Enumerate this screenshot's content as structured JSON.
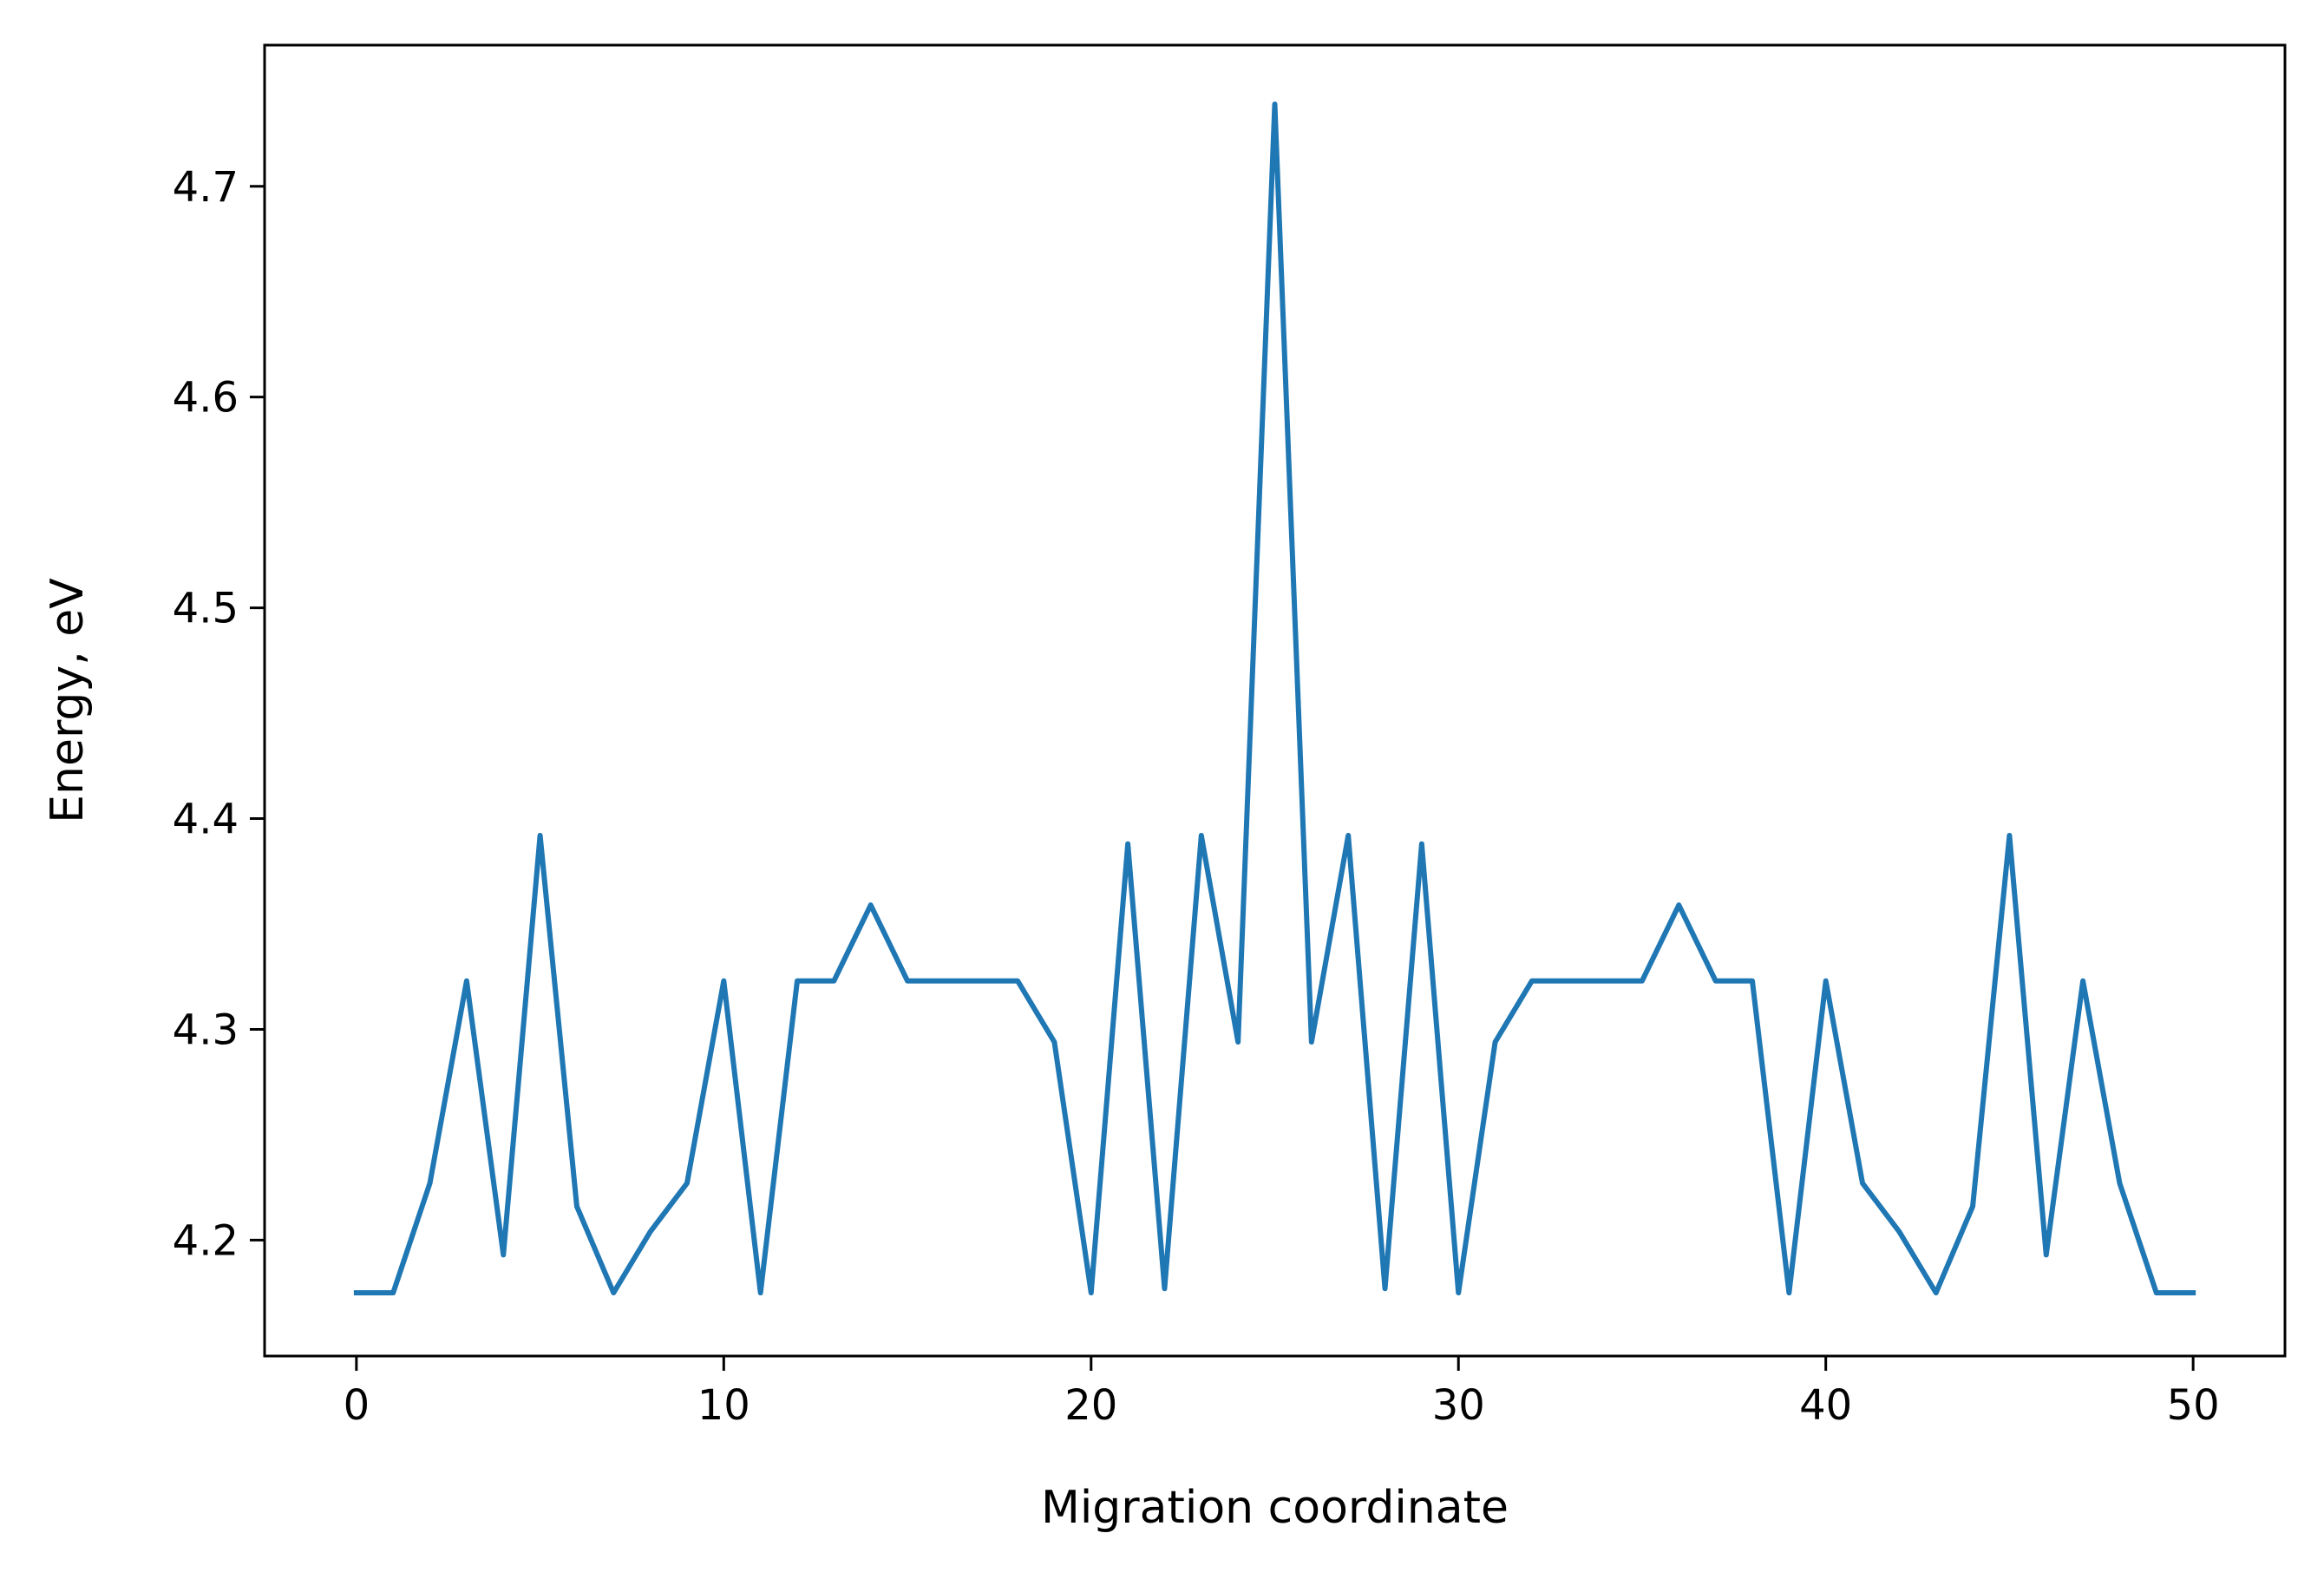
{
  "chart_data": {
    "type": "line",
    "title": "",
    "xlabel": "Migration coordinate",
    "ylabel": "Energy, eV",
    "xlim": [
      -2.5,
      52.5
    ],
    "ylim": [
      4.145,
      4.767
    ],
    "xticks": [
      0,
      10,
      20,
      30,
      40,
      50
    ],
    "xtick_labels": [
      "0",
      "10",
      "20",
      "30",
      "40",
      "50"
    ],
    "yticks": [
      4.2,
      4.3,
      4.4,
      4.5,
      4.6,
      4.7
    ],
    "ytick_labels": [
      "4.2",
      "4.3",
      "4.4",
      "4.5",
      "4.6",
      "4.7"
    ],
    "grid": false,
    "legend": "none",
    "series": [
      {
        "color": "#1f77b4",
        "x": [
          0,
          1,
          2,
          3,
          4,
          5,
          6,
          7,
          8,
          9,
          10,
          11,
          12,
          13,
          14,
          15,
          16,
          17,
          18,
          19,
          20,
          21,
          22,
          23,
          24,
          25,
          26,
          27,
          28,
          29,
          30,
          31,
          32,
          33,
          34,
          35,
          36,
          37,
          38,
          39,
          40,
          41,
          42,
          43,
          44,
          45,
          46,
          47,
          48,
          49,
          50
        ],
        "y": [
          4.175,
          4.175,
          4.227,
          4.323,
          4.193,
          4.392,
          4.216,
          4.175,
          4.204,
          4.227,
          4.323,
          4.175,
          4.323,
          4.323,
          4.359,
          4.323,
          4.323,
          4.323,
          4.323,
          4.294,
          4.175,
          4.388,
          4.177,
          4.392,
          4.294,
          4.739,
          4.294,
          4.392,
          4.177,
          4.388,
          4.175,
          4.294,
          4.323,
          4.323,
          4.323,
          4.323,
          4.359,
          4.323,
          4.323,
          4.175,
          4.323,
          4.227,
          4.204,
          4.175,
          4.216,
          4.392,
          4.193,
          4.323,
          4.227,
          4.175,
          4.175
        ]
      }
    ]
  }
}
